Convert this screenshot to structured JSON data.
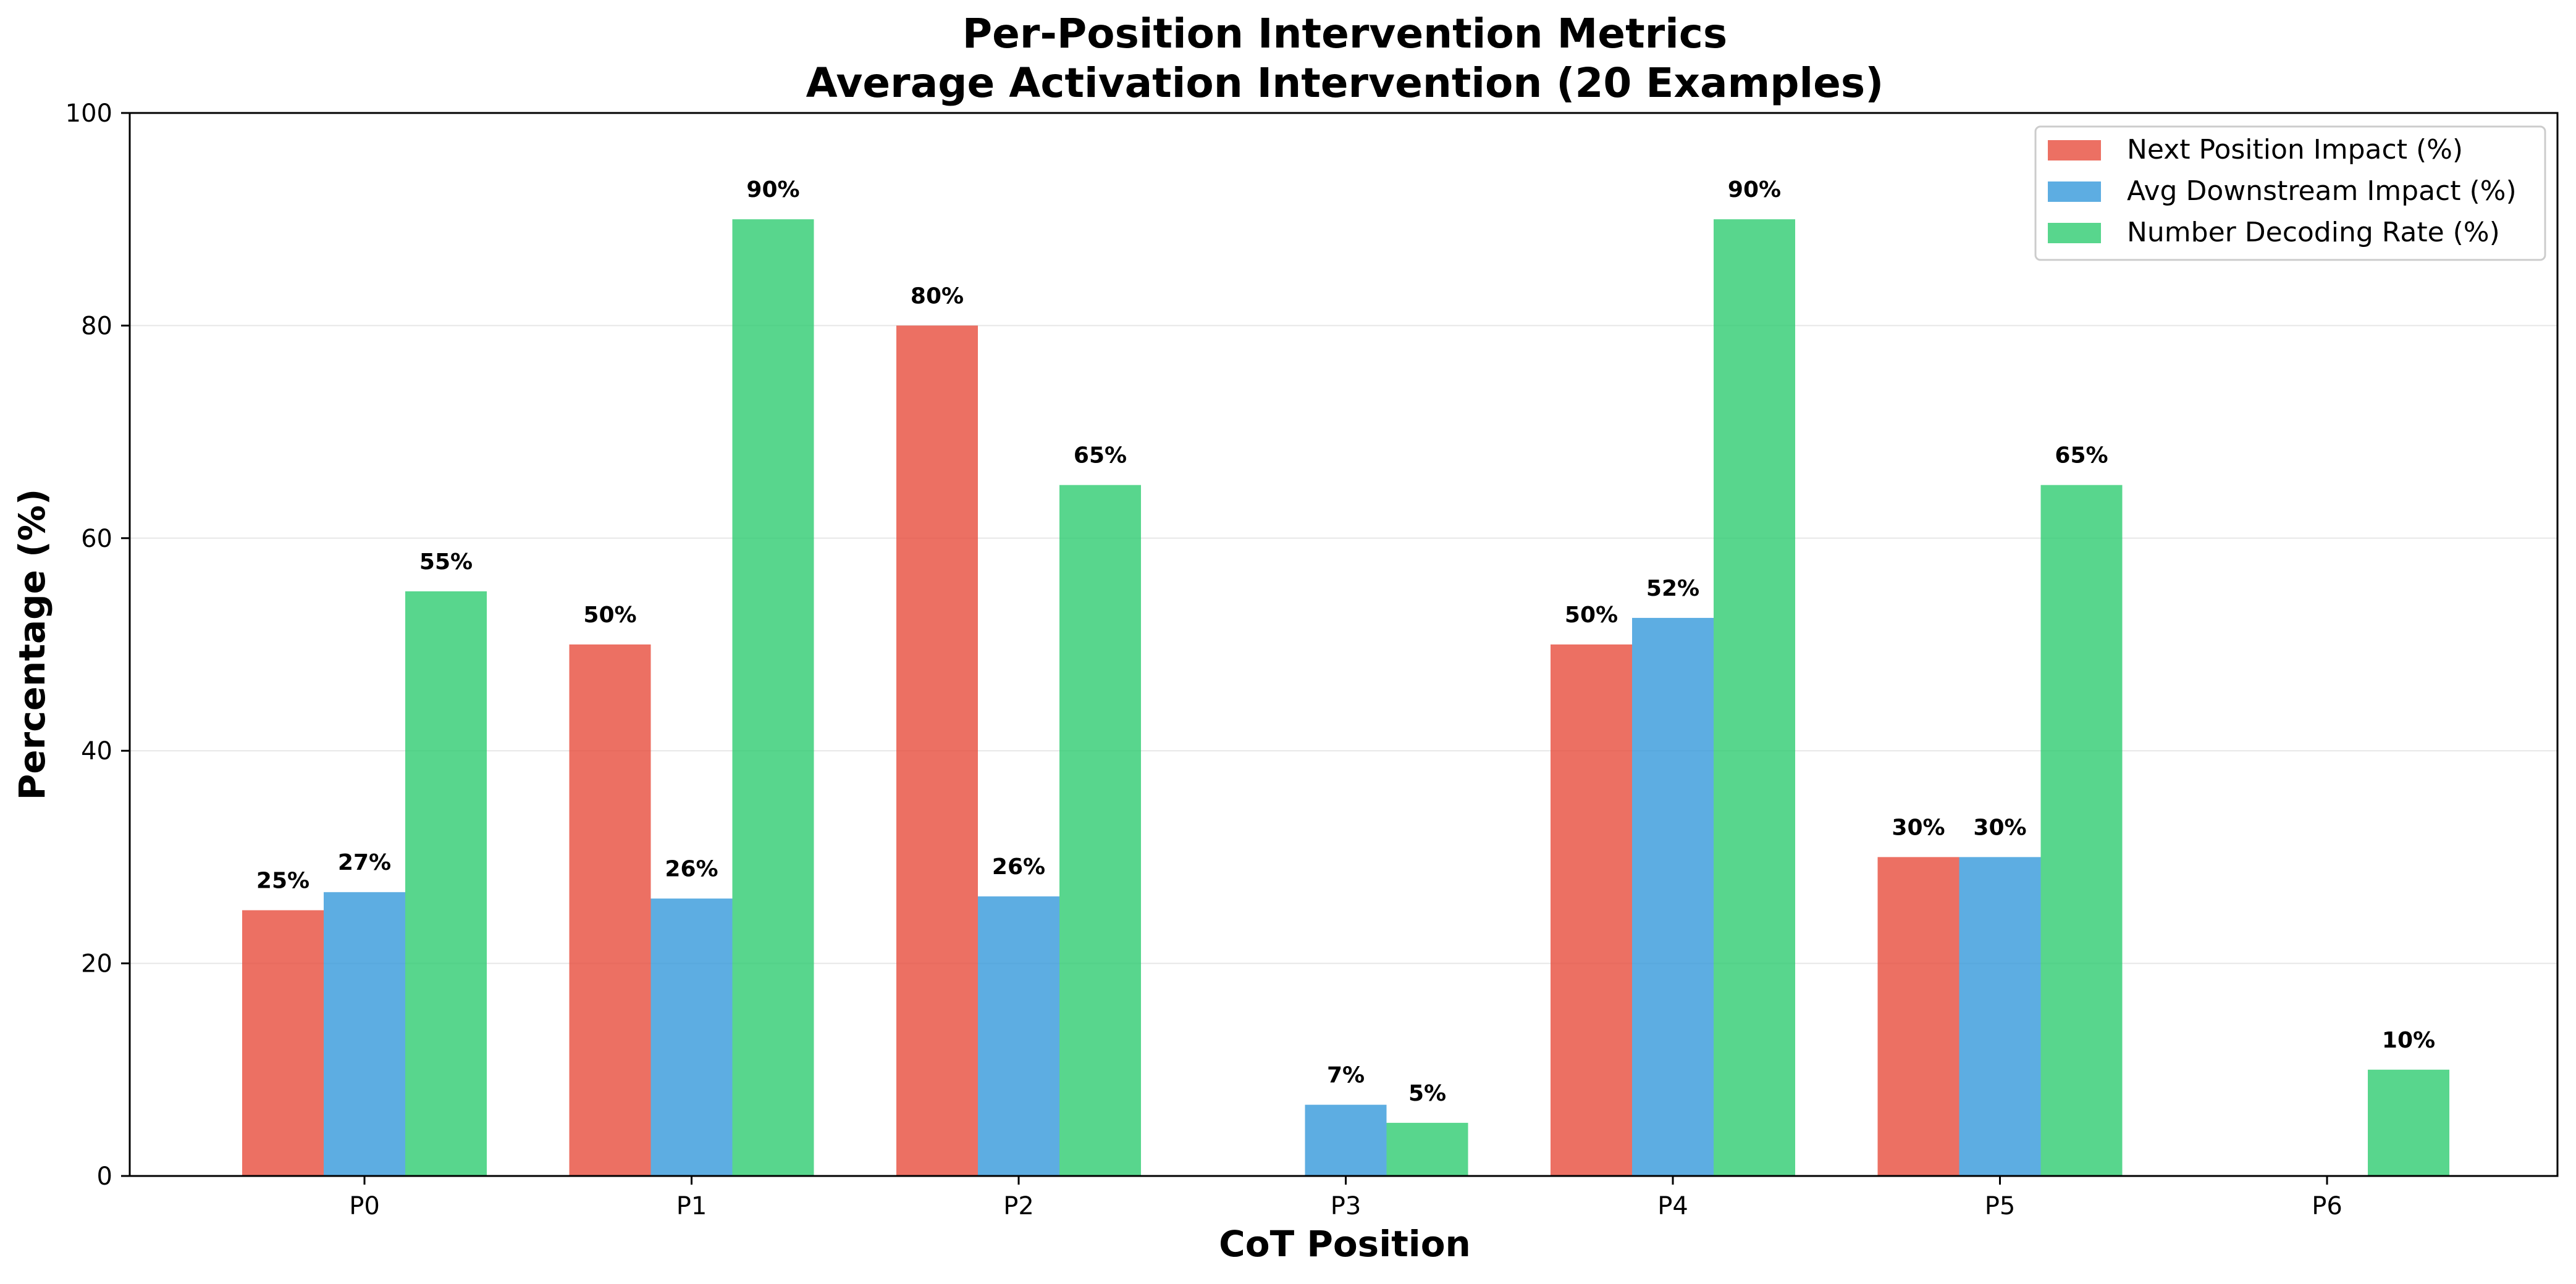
{
  "chart_data": {
    "type": "bar",
    "title": "Per-Position Intervention Metrics",
    "subtitle": "Average Activation Intervention (20 Examples)",
    "xlabel": "CoT Position",
    "ylabel": "Percentage (%)",
    "ylim": [
      0,
      100
    ],
    "yticks": [
      "0",
      "20",
      "40",
      "60",
      "80",
      "100"
    ],
    "categories": [
      "P0",
      "P1",
      "P2",
      "P3",
      "P4",
      "P5",
      "P6"
    ],
    "grid": true,
    "legend_position": "top-right",
    "series": [
      {
        "name": "Next Position Impact (%)",
        "color": "#e74c3c",
        "values": [
          25,
          50,
          80,
          0,
          50,
          30,
          0
        ],
        "labels": [
          "25%",
          "50%",
          "80%",
          "",
          "50%",
          "30%",
          ""
        ]
      },
      {
        "name": "Avg Downstream Impact (%)",
        "color": "#3498db",
        "values": [
          26.7,
          26.1,
          26.3,
          6.7,
          52.5,
          30,
          0
        ],
        "labels": [
          "27%",
          "26%",
          "26%",
          "7%",
          "52%",
          "30%",
          ""
        ]
      },
      {
        "name": "Number Decoding Rate (%)",
        "color": "#2ecc71",
        "values": [
          55,
          90,
          65,
          5,
          90,
          65,
          10
        ],
        "labels": [
          "55%",
          "90%",
          "65%",
          "5%",
          "90%",
          "65%",
          "10%"
        ]
      }
    ]
  }
}
